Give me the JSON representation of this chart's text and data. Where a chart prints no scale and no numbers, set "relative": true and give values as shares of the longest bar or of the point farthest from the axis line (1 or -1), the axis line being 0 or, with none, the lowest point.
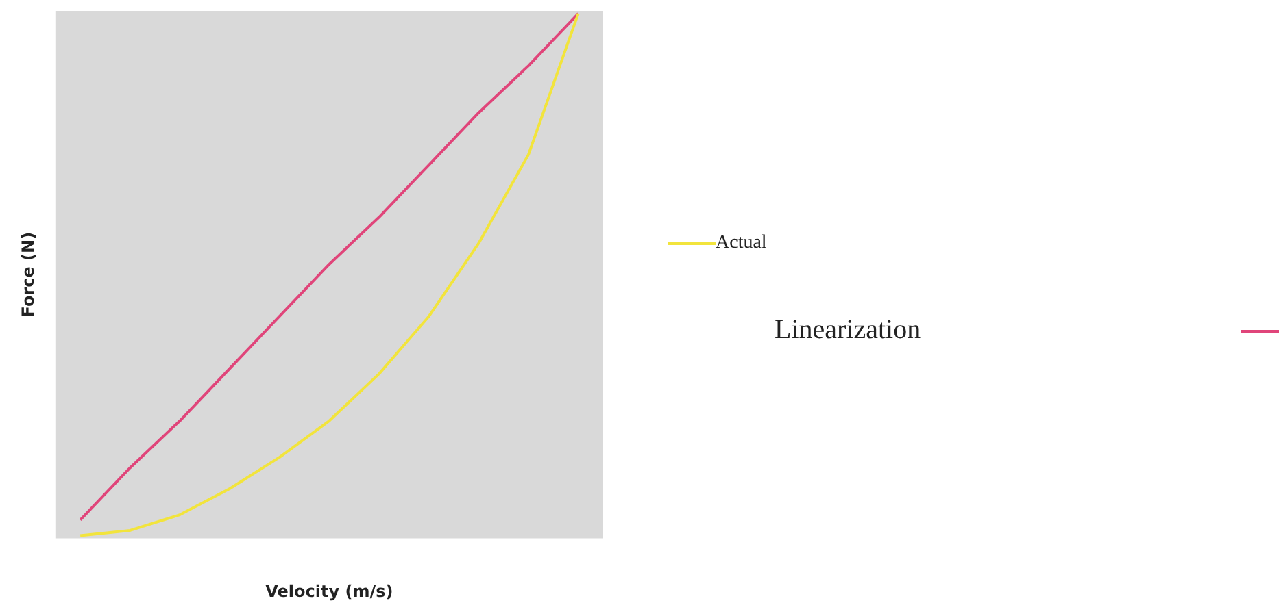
{
  "chart_data": {
    "type": "line",
    "relative": true,
    "xlabel": "Velocity (m/s)",
    "ylabel": "Force (N)",
    "legend": "right",
    "marker": "none",
    "grid": false,
    "categories": [
      null,
      null,
      null,
      null,
      null,
      null,
      null,
      null,
      null,
      null,
      null
    ],
    "series": [
      {
        "name": "Actual",
        "color": "#f2e43c",
        "values": [
          0,
          0.01,
          0.04,
          0.09,
          0.15,
          0.22,
          0.31,
          0.42,
          0.56,
          0.73,
          1
        ]
      },
      {
        "name": "Linearization",
        "color": "#e0457a",
        "values": [
          0.03,
          0.13,
          0.22,
          0.32,
          0.42,
          0.52,
          0.61,
          0.71,
          0.81,
          0.9,
          1
        ]
      }
    ]
  }
}
